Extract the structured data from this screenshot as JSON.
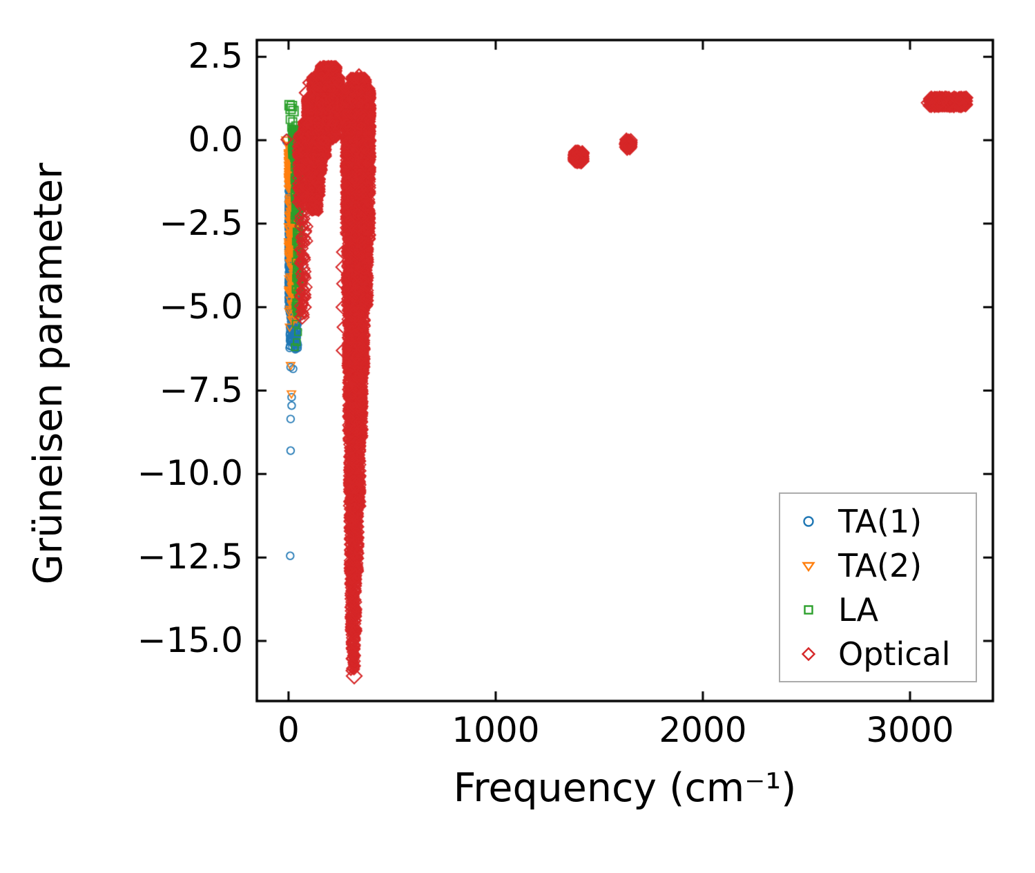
{
  "chart_data": {
    "type": "scatter",
    "title": "",
    "xlabel": "Frequency (cm⁻¹)",
    "ylabel": "Grüneisen parameter",
    "xlim": [
      -153,
      3400
    ],
    "ylim": [
      -16.8,
      3.0
    ],
    "grid": false,
    "legend_position": "lower right",
    "frame_color": "#000000",
    "legend_border_color": "#ababab",
    "xticks": [
      {
        "v": 0,
        "label": "0"
      },
      {
        "v": 1000,
        "label": "1000"
      },
      {
        "v": 2000,
        "label": "2000"
      },
      {
        "v": 3000,
        "label": "3000"
      }
    ],
    "yticks": [
      {
        "v": 2.5,
        "label": "2.5"
      },
      {
        "v": 0.0,
        "label": "0.0"
      },
      {
        "v": -2.5,
        "label": "−2.5"
      },
      {
        "v": -5.0,
        "label": "−5.0"
      },
      {
        "v": -7.5,
        "label": "−7.5"
      },
      {
        "v": -10.0,
        "label": "−10.0"
      },
      {
        "v": -12.5,
        "label": "−12.5"
      },
      {
        "v": -15.0,
        "label": "−15.0"
      }
    ],
    "series": [
      {
        "name": "TA(1)",
        "marker": "circle",
        "color": "#1f77b4",
        "clusters": [
          {
            "x": [
              0,
              45
            ],
            "y": [
              -2.6,
              -1.2
            ],
            "n": 450
          },
          {
            "x": [
              0,
              55
            ],
            "y": [
              -4.4,
              -2.6
            ],
            "n": 500
          },
          {
            "x": [
              0,
              50
            ],
            "y": [
              -5.2,
              -4.4
            ],
            "n": 200
          },
          {
            "x": [
              5,
              45
            ],
            "y": [
              -6.3,
              -5.2
            ],
            "n": 100
          }
        ],
        "points": [
          [
            0,
            0.0,
            1.6
          ],
          [
            10,
            -6.8,
            1
          ],
          [
            22,
            -6.85,
            1
          ],
          [
            15,
            -7.7,
            1
          ],
          [
            15,
            -7.95,
            1
          ],
          [
            10,
            -8.35,
            1
          ],
          [
            10,
            -9.3,
            1
          ],
          [
            8,
            -12.45,
            1
          ]
        ]
      },
      {
        "name": "TA(2)",
        "marker": "triangle-down",
        "color": "#ff7f0e",
        "clusters": [
          {
            "x": [
              0,
              55
            ],
            "y": [
              -1.35,
              -0.15
            ],
            "n": 550
          },
          {
            "x": [
              0,
              55
            ],
            "y": [
              -3.5,
              -1.35
            ],
            "n": 160
          },
          {
            "x": [
              0,
              50
            ],
            "y": [
              -5.4,
              -3.5
            ],
            "n": 60
          }
        ],
        "points": [
          [
            0,
            -0.05,
            1.6
          ],
          [
            10,
            -6.75,
            1
          ],
          [
            14,
            -7.6,
            1
          ],
          [
            5,
            -5.6,
            1
          ]
        ]
      },
      {
        "name": "LA",
        "marker": "square",
        "color": "#2ca02c",
        "clusters": [
          {
            "x": [
              15,
              62
            ],
            "y": [
              -0.55,
              0.35
            ],
            "n": 400
          },
          {
            "x": [
              28,
              58
            ],
            "y": [
              -2.5,
              -0.55
            ],
            "n": 130
          },
          {
            "x": [
              33,
              55
            ],
            "y": [
              -5.2,
              -2.5
            ],
            "n": 70
          }
        ],
        "points": [
          [
            5,
            1.05,
            1.4
          ],
          [
            16,
            1.02,
            1.4
          ],
          [
            10,
            0.94,
            1.4
          ],
          [
            24,
            0.87,
            1.4
          ],
          [
            8,
            0.62,
            1.2
          ],
          [
            20,
            0.55,
            1.2
          ],
          [
            32,
            0.45,
            1
          ],
          [
            12,
            0.37,
            1
          ],
          [
            35,
            -5.5,
            1
          ],
          [
            46,
            -5.75,
            1
          ],
          [
            40,
            -6.05,
            1
          ],
          [
            30,
            -6.2,
            1
          ]
        ]
      },
      {
        "name": "Optical",
        "marker": "diamond",
        "color": "#d62728",
        "clusters": [
          {
            "x": [
              150,
              235
            ],
            "y": [
              1.9,
              2.25
            ],
            "n": 300
          },
          {
            "x": [
              110,
              250
            ],
            "y": [
              1.3,
              1.9
            ],
            "n": 850
          },
          {
            "x": [
              85,
              255
            ],
            "y": [
              0.6,
              1.3
            ],
            "n": 1100
          },
          {
            "x": [
              67,
              230
            ],
            "y": [
              0.0,
              0.6
            ],
            "n": 900
          },
          {
            "x": [
              67,
              185
            ],
            "y": [
              -0.5,
              0.0
            ],
            "n": 550
          },
          {
            "x": [
              80,
              165
            ],
            "y": [
              -1.0,
              -0.5
            ],
            "n": 350
          },
          {
            "x": [
              95,
              155
            ],
            "y": [
              -1.7,
              -1.0
            ],
            "n": 220
          },
          {
            "x": [
              105,
              145
            ],
            "y": [
              -2.15,
              -1.7
            ],
            "n": 100
          },
          {
            "x": [
              40,
              85
            ],
            "y": [
              -2.0,
              0.2
            ],
            "n": 130
          },
          {
            "x": [
              50,
              95
            ],
            "y": [
              -5.3,
              -2.0
            ],
            "n": 80
          },
          {
            "x": [
              300,
              378
            ],
            "y": [
              1.55,
              1.9
            ],
            "n": 220
          },
          {
            "x": [
              265,
              400
            ],
            "y": [
              0.8,
              1.55
            ],
            "n": 850
          },
          {
            "x": [
              268,
              400
            ],
            "y": [
              0.0,
              0.8
            ],
            "n": 750
          },
          {
            "x": [
              272,
              400
            ],
            "y": [
              -1.0,
              0.0
            ],
            "n": 650
          },
          {
            "x": [
              272,
              398
            ],
            "y": [
              -3.0,
              -1.0
            ],
            "n": 850
          },
          {
            "x": [
              277,
              388
            ],
            "y": [
              -5.0,
              -3.0
            ],
            "n": 750
          },
          {
            "x": [
              280,
              372
            ],
            "y": [
              -7.0,
              -5.0
            ],
            "n": 650
          },
          {
            "x": [
              283,
              362
            ],
            "y": [
              -9.0,
              -7.0
            ],
            "n": 550
          },
          {
            "x": [
              287,
              352
            ],
            "y": [
              -11.0,
              -9.0
            ],
            "n": 420
          },
          {
            "x": [
              290,
              342
            ],
            "y": [
              -13.0,
              -11.0
            ],
            "n": 300
          },
          {
            "x": [
              294,
              332
            ],
            "y": [
              -14.8,
              -13.0
            ],
            "n": 170
          },
          {
            "x": [
              300,
              326
            ],
            "y": [
              -15.9,
              -14.8
            ],
            "n": 70
          },
          {
            "x": [
              1380,
              1420
            ],
            "y": [
              -0.66,
              -0.34
            ],
            "n": 140,
            "s": 1.4
          },
          {
            "x": [
              1628,
              1652
            ],
            "y": [
              -0.26,
              0.02
            ],
            "n": 50,
            "s": 1.4
          },
          {
            "x": [
              3095,
              3272
            ],
            "y": [
              1.02,
              1.28
            ],
            "n": 220,
            "s": 1.4
          }
        ],
        "points": [
          [
            90,
            1.42,
            1.7
          ],
          [
            107,
            1.72,
            1.7
          ],
          [
            250,
            1.77,
            1.7
          ],
          [
            340,
            1.9,
            1.7
          ],
          [
            158,
            2.05,
            1.7
          ],
          [
            317,
            -16.05,
            1.7
          ],
          [
            265,
            -3.35,
            1.5
          ],
          [
            262,
            -3.8,
            1.5
          ],
          [
            266,
            -4.3,
            1.5
          ],
          [
            263,
            -5.0,
            1.5
          ],
          [
            268,
            -5.6,
            1.5
          ],
          [
            264,
            -6.3,
            1.5
          ],
          [
            70,
            -4.5,
            1.5
          ],
          [
            76,
            -5.0,
            1.5
          ],
          [
            66,
            -5.3,
            1.5
          ],
          [
            3088,
            1.12,
            1.5
          ],
          [
            1640,
            -0.12,
            1.5
          ],
          [
            -10,
            0.02,
            1.2
          ]
        ]
      }
    ]
  }
}
